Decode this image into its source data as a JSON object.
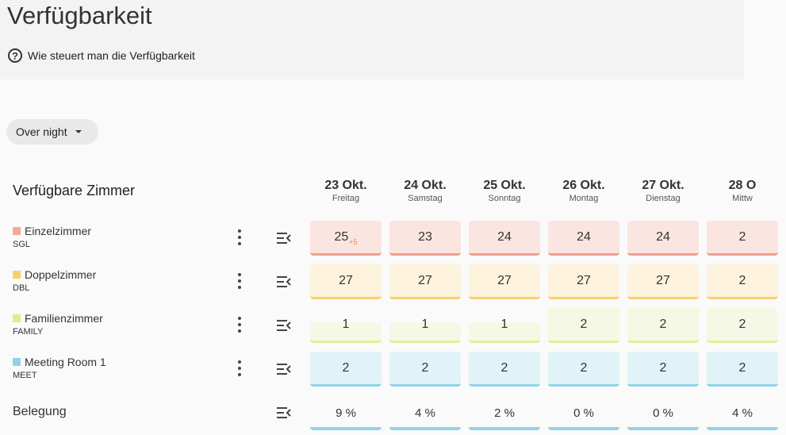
{
  "page_title": "Verfügbarkeit",
  "help_link": "Wie steuert man die Verfügbarkeit",
  "help_icon": "help-circle-icon",
  "filter": {
    "selected": "Over night"
  },
  "section_title": "Verfügbare Zimmer",
  "dates": [
    {
      "main": "23 Okt.",
      "sub": "Freitag"
    },
    {
      "main": "24 Okt.",
      "sub": "Samstag"
    },
    {
      "main": "25 Okt.",
      "sub": "Sonntag"
    },
    {
      "main": "26 Okt.",
      "sub": "Montag"
    },
    {
      "main": "27 Okt.",
      "sub": "Dienstag"
    },
    {
      "main": "28 O",
      "sub": "Mittw"
    }
  ],
  "rooms": [
    {
      "name": "Einzelzimmer",
      "code": "SGL",
      "color": "#f4a896",
      "bg": "#fbe5e1",
      "border": "#efa08e",
      "values": [
        "25",
        "23",
        "24",
        "24",
        "24",
        "2"
      ],
      "extra": "+5"
    },
    {
      "name": "Doppelzimmer",
      "code": "DBL",
      "color": "#f6d06a",
      "bg": "#fdf3dc",
      "border": "#f4d36c",
      "values": [
        "27",
        "27",
        "27",
        "27",
        "27",
        "2"
      ]
    },
    {
      "name": "Familienzimmer",
      "code": "FAMILY",
      "color": "#e3ea8e",
      "bg": "#f5f8e4",
      "border": "#e6ec96",
      "values": [
        "1",
        "1",
        "1",
        "2",
        "2",
        "2"
      ]
    },
    {
      "name": "Meeting Room 1",
      "code": "MEET",
      "color": "#8fd3e8",
      "bg": "#e1f3f8",
      "border": "#8fd3e8",
      "values": [
        "2",
        "2",
        "2",
        "2",
        "2",
        "2"
      ]
    }
  ],
  "occupancy": {
    "label": "Belegung",
    "values": [
      "9 %",
      "4 %",
      "2 %",
      "0 %",
      "0 %",
      "4 %"
    ]
  }
}
